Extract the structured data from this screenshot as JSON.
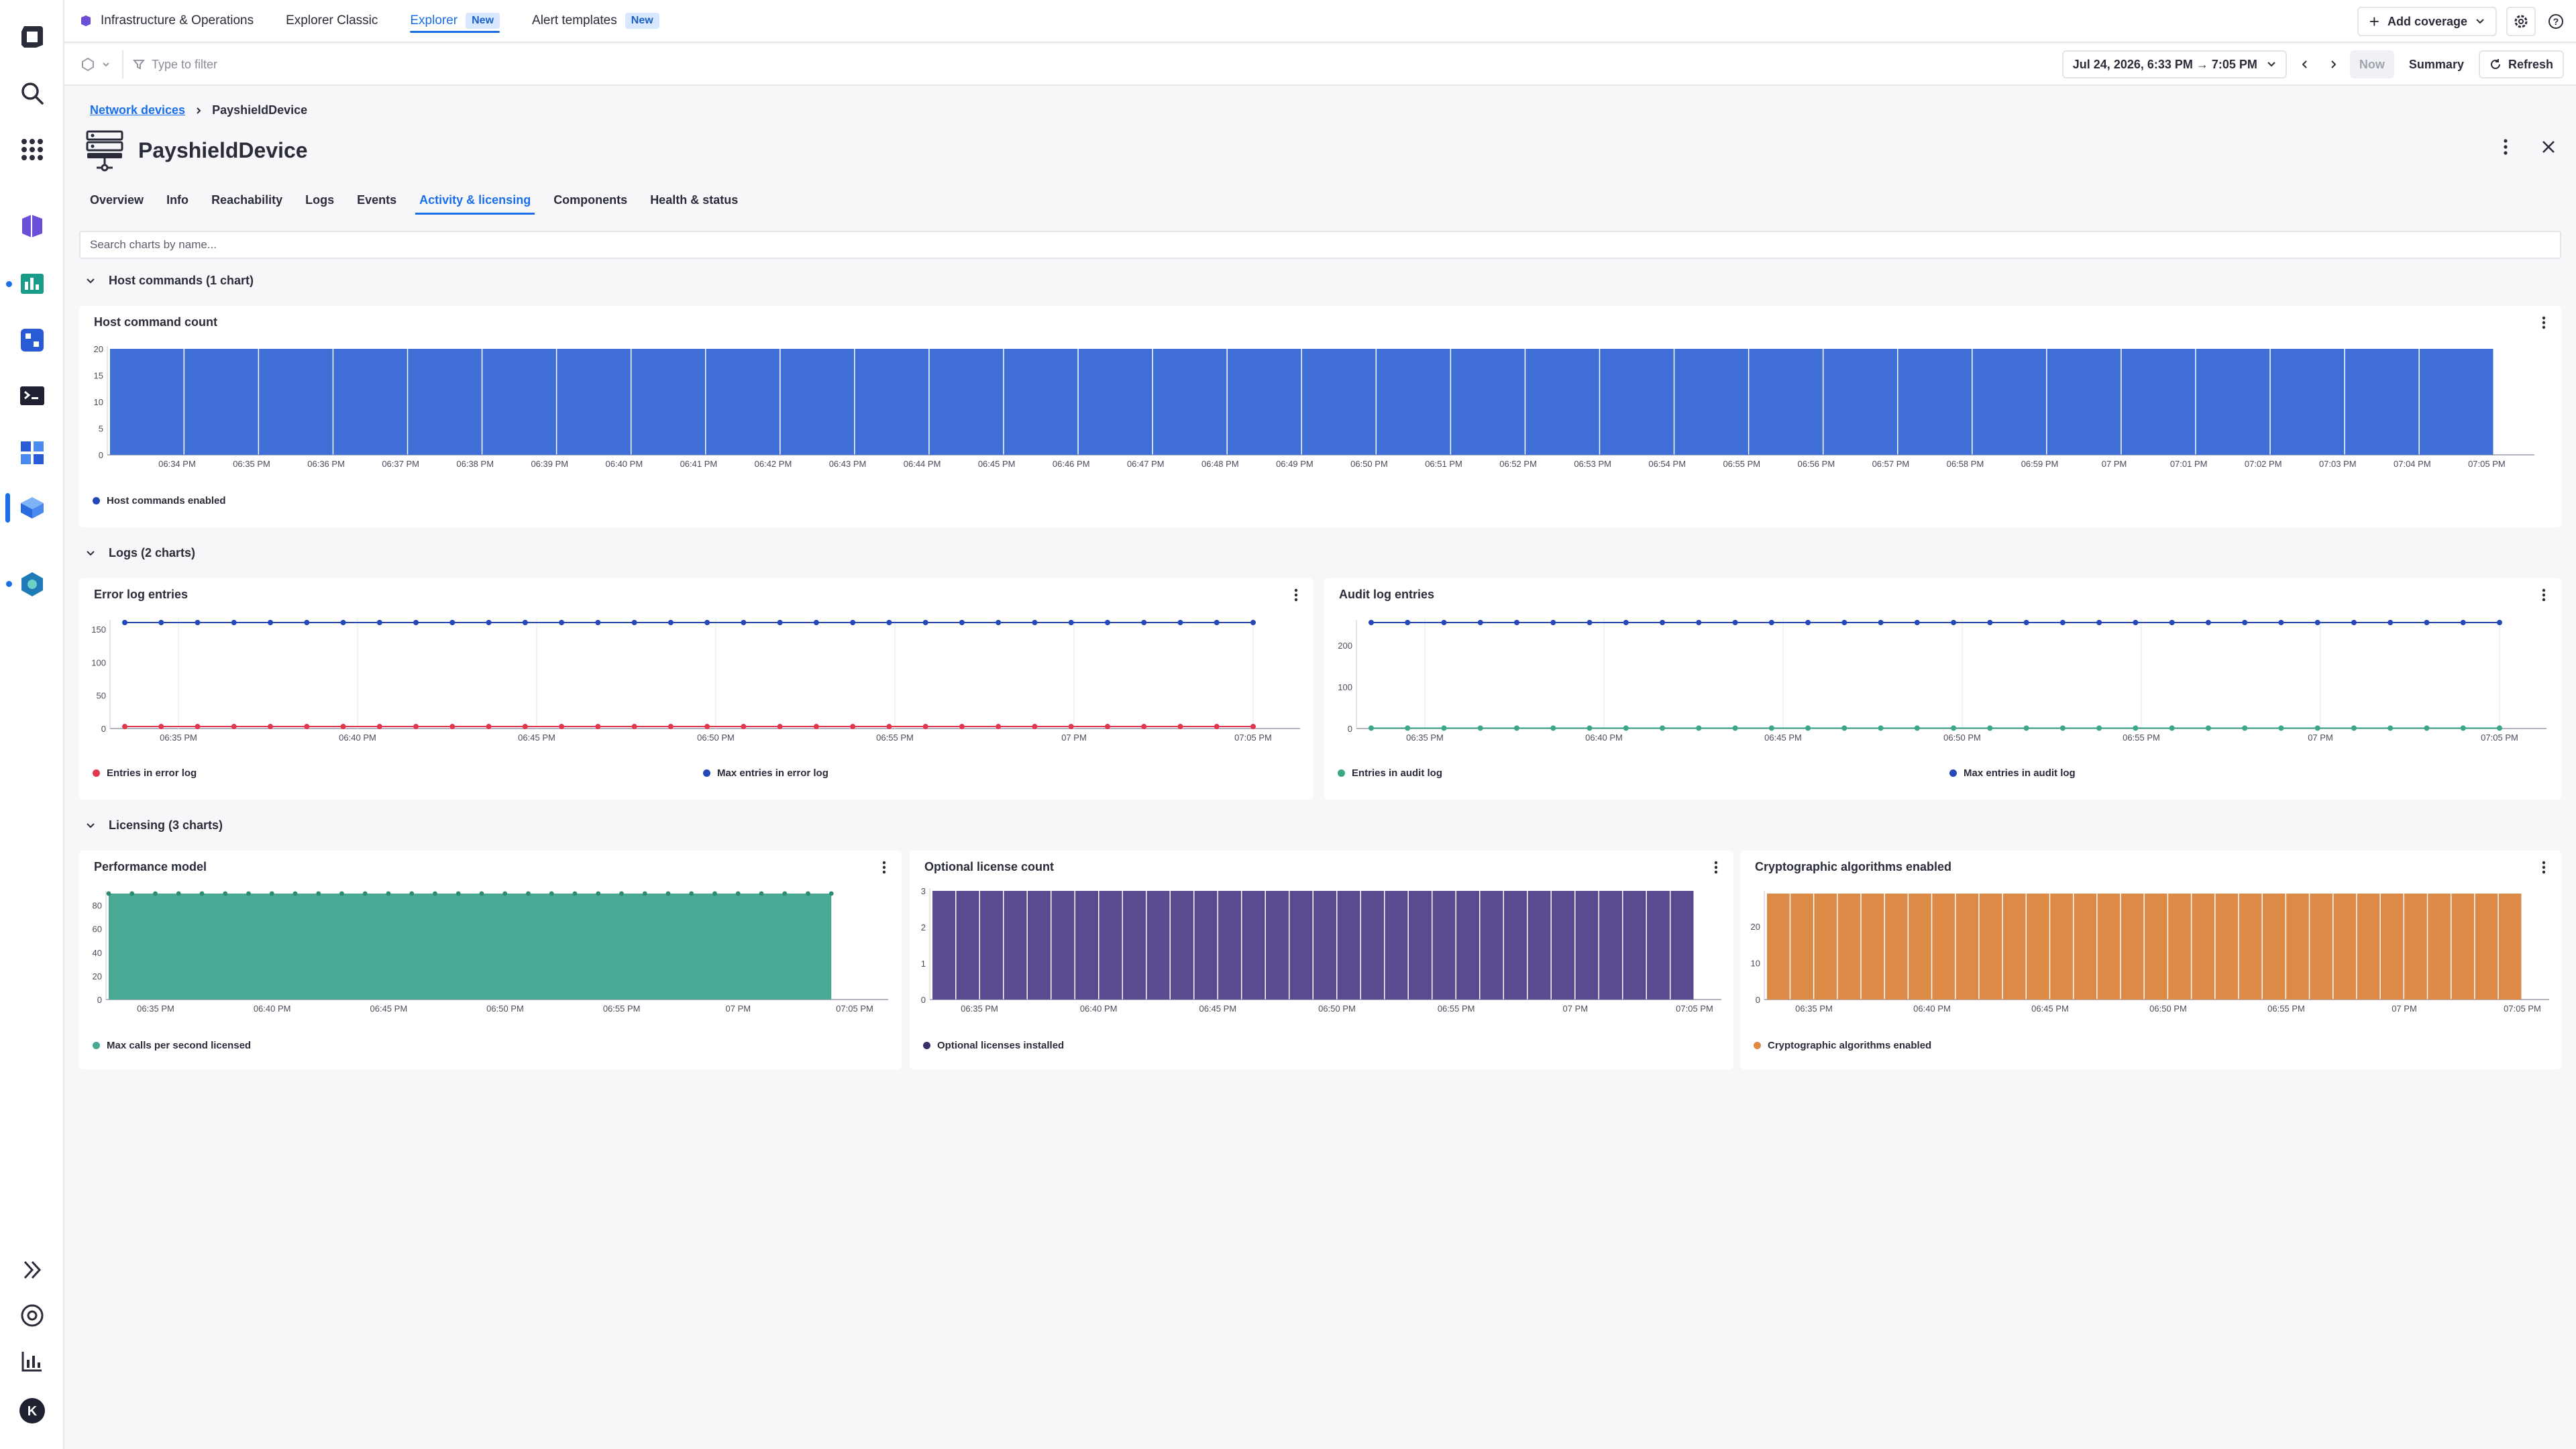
{
  "topbar": {
    "tabs": [
      {
        "label": "Infrastructure & Operations"
      },
      {
        "label": "Explorer Classic"
      },
      {
        "label": "Explorer",
        "badge": "New"
      },
      {
        "label": "Alert templates",
        "badge": "New"
      }
    ],
    "add_coverage": "Add coverage"
  },
  "filterbar": {
    "placeholder": "Type to filter",
    "timeframe": "Jul 24, 2026, 6:33 PM → 7:05 PM",
    "now": "Now",
    "summary": "Summary",
    "refresh": "Refresh"
  },
  "breadcrumb": {
    "parent": "Network devices",
    "current": "PayshieldDevice"
  },
  "page": {
    "title": "PayshieldDevice"
  },
  "tabs": [
    "Overview",
    "Info",
    "Reachability",
    "Logs",
    "Events",
    "Activity & licensing",
    "Components",
    "Health & status"
  ],
  "active_tab": "Activity & licensing",
  "search": {
    "placeholder": "Search charts by name..."
  },
  "sections": {
    "host": "Host commands (1 chart)",
    "logs": "Logs (2 charts)",
    "licensing": "Licensing (3 charts)"
  },
  "colors": {
    "blue": "#3f6fd6",
    "navy": "#2448b8",
    "red": "#e0384c",
    "green": "#3da58a",
    "teal": "#48a994",
    "purple": "#5a4a8f",
    "orange": "#dd8a46"
  },
  "chart_data": [
    {
      "id": "host",
      "type": "bar",
      "title": "Host command count",
      "ylim": [
        0,
        20
      ],
      "yticks": [
        0,
        5,
        10,
        15,
        20
      ],
      "categories": [
        "06:34 PM",
        "06:35 PM",
        "06:36 PM",
        "06:37 PM",
        "06:38 PM",
        "06:39 PM",
        "06:40 PM",
        "06:41 PM",
        "06:42 PM",
        "06:43 PM",
        "06:44 PM",
        "06:45 PM",
        "06:46 PM",
        "06:47 PM",
        "06:48 PM",
        "06:49 PM",
        "06:50 PM",
        "06:51 PM",
        "06:52 PM",
        "06:53 PM",
        "06:54 PM",
        "06:55 PM",
        "06:56 PM",
        "06:57 PM",
        "06:58 PM",
        "06:59 PM",
        "07 PM",
        "07:01 PM",
        "07:02 PM",
        "07:03 PM",
        "07:04 PM",
        "07:05 PM"
      ],
      "series": [
        {
          "name": "Host commands enabled",
          "color": "#3f6fd6",
          "values": [
            20,
            20,
            20,
            20,
            20,
            20,
            20,
            20,
            20,
            20,
            20,
            20,
            20,
            20,
            20,
            20,
            20,
            20,
            20,
            20,
            20,
            20,
            20,
            20,
            20,
            20,
            20,
            20,
            20,
            20,
            20,
            20
          ]
        }
      ]
    },
    {
      "id": "error",
      "type": "line",
      "title": "Error log entries",
      "ylim": [
        0,
        160
      ],
      "yticks": [
        0,
        50,
        100,
        150
      ],
      "xticks": [
        "06:35 PM",
        "06:40 PM",
        "06:45 PM",
        "06:50 PM",
        "06:55 PM",
        "07 PM",
        "07:05 PM"
      ],
      "series": [
        {
          "name": "Entries in error log",
          "color": "#e0384c",
          "values": [
            3,
            3,
            3,
            3,
            3,
            3,
            3,
            3,
            3,
            3,
            3,
            3,
            3,
            3,
            3,
            3,
            3,
            3,
            3,
            3,
            3,
            3,
            3,
            3,
            3,
            3,
            3,
            3,
            3,
            3,
            3,
            3
          ]
        },
        {
          "name": "Max entries in error log",
          "color": "#2448b8",
          "values": [
            160,
            160,
            160,
            160,
            160,
            160,
            160,
            160,
            160,
            160,
            160,
            160,
            160,
            160,
            160,
            160,
            160,
            160,
            160,
            160,
            160,
            160,
            160,
            160,
            160,
            160,
            160,
            160,
            160,
            160,
            160,
            160
          ]
        }
      ]
    },
    {
      "id": "audit",
      "type": "line",
      "title": "Audit log entries",
      "ylim": [
        0,
        255
      ],
      "yticks": [
        0,
        100,
        200
      ],
      "xticks": [
        "06:35 PM",
        "06:40 PM",
        "06:45 PM",
        "06:50 PM",
        "06:55 PM",
        "07 PM",
        "07:05 PM"
      ],
      "series": [
        {
          "name": "Entries in audit log",
          "color": "#3da58a",
          "values": [
            1,
            1,
            1,
            1,
            1,
            1,
            1,
            1,
            1,
            1,
            1,
            1,
            1,
            1,
            1,
            1,
            1,
            1,
            1,
            1,
            1,
            1,
            1,
            1,
            1,
            1,
            1,
            1,
            1,
            1,
            1,
            1
          ]
        },
        {
          "name": "Max entries in audit log",
          "color": "#2448b8",
          "values": [
            255,
            255,
            255,
            255,
            255,
            255,
            255,
            255,
            255,
            255,
            255,
            255,
            255,
            255,
            255,
            255,
            255,
            255,
            255,
            255,
            255,
            255,
            255,
            255,
            255,
            255,
            255,
            255,
            255,
            255,
            255,
            255
          ]
        }
      ]
    },
    {
      "id": "perf",
      "type": "area",
      "title": "Performance model",
      "ylim": [
        0,
        90
      ],
      "yticks": [
        0,
        20,
        40,
        60,
        80
      ],
      "xticks": [
        "06:35 PM",
        "06:40 PM",
        "06:45 PM",
        "06:50 PM",
        "06:55 PM",
        "07 PM",
        "07:05 PM"
      ],
      "series": [
        {
          "name": "Max calls per second licensed",
          "color": "#48a994",
          "values": [
            90,
            90,
            90,
            90,
            90,
            90,
            90,
            90,
            90,
            90,
            90,
            90,
            90,
            90,
            90,
            90,
            90,
            90,
            90,
            90,
            90,
            90,
            90,
            90,
            90,
            90,
            90,
            90,
            90,
            90,
            90,
            90
          ]
        }
      ]
    },
    {
      "id": "optlic",
      "type": "bar",
      "title": "Optional license count",
      "ylim": [
        0,
        3
      ],
      "yticks": [
        0,
        1,
        2,
        3
      ],
      "xticks": [
        "06:35 PM",
        "06:40 PM",
        "06:45 PM",
        "06:50 PM",
        "06:55 PM",
        "07 PM",
        "07:05 PM"
      ],
      "series": [
        {
          "name": "Optional licenses installed",
          "color": "#5a4a8f",
          "values": [
            3,
            3,
            3,
            3,
            3,
            3,
            3,
            3,
            3,
            3,
            3,
            3,
            3,
            3,
            3,
            3,
            3,
            3,
            3,
            3,
            3,
            3,
            3,
            3,
            3,
            3,
            3,
            3,
            3,
            3,
            3,
            3
          ]
        }
      ]
    },
    {
      "id": "crypto",
      "type": "bar",
      "title": "Cryptographic algorithms enabled",
      "ylim": [
        0,
        29
      ],
      "yticks": [
        0,
        10,
        20
      ],
      "xticks": [
        "06:35 PM",
        "06:40 PM",
        "06:45 PM",
        "06:50 PM",
        "06:55 PM",
        "07 PM",
        "07:05 PM"
      ],
      "series": [
        {
          "name": "Cryptographic algorithms enabled",
          "color": "#dd8a46",
          "values": [
            29,
            29,
            29,
            29,
            29,
            29,
            29,
            29,
            29,
            29,
            29,
            29,
            29,
            29,
            29,
            29,
            29,
            29,
            29,
            29,
            29,
            29,
            29,
            29,
            29,
            29,
            29,
            29,
            29,
            29,
            29,
            29
          ]
        }
      ]
    }
  ]
}
